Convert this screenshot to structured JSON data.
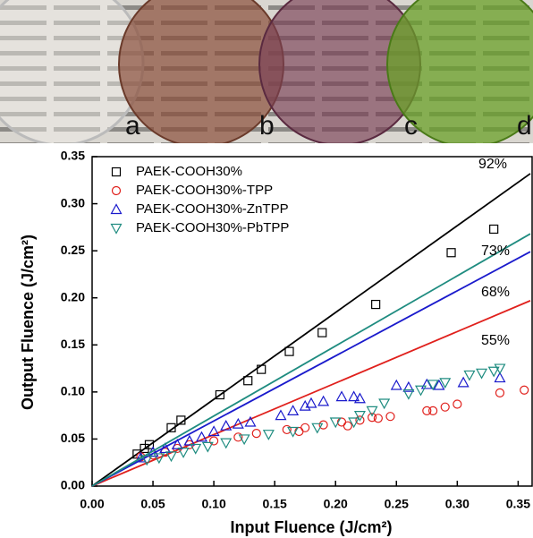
{
  "photo_labels": [
    "a",
    "b",
    "c",
    "d"
  ],
  "chart_data": {
    "type": "scatter",
    "xlabel": "Input Fluence (J/cm²)",
    "ylabel": "Output Fluence (J/cm²)",
    "xlim": [
      0,
      0.36
    ],
    "ylim": [
      0,
      0.35
    ],
    "xticks": [
      {
        "value": 0,
        "label": "0.00"
      },
      0.05,
      {
        "value": 0.1,
        "label": "0.10"
      },
      0.15,
      {
        "value": 0.2,
        "label": "0.20"
      },
      0.25,
      {
        "value": 0.3,
        "label": "0.30"
      },
      0.35
    ],
    "yticks": [
      {
        "value": 0,
        "label": "0.00"
      },
      0.05,
      {
        "value": 0.1,
        "label": "0.10"
      },
      0.15,
      {
        "value": 0.2,
        "label": "0.20"
      },
      0.25,
      {
        "value": 0.3,
        "label": "0.30"
      },
      0.35
    ],
    "legend": "upper left",
    "annotations": [
      "92%",
      "73%",
      "68%",
      "55%"
    ],
    "series": [
      {
        "name": "PAEK-COOH30%",
        "color": "#000000",
        "marker": "square",
        "x": [
          0.037,
          0.043,
          0.047,
          0.065,
          0.073,
          0.105,
          0.128,
          0.139,
          0.162,
          0.189,
          0.233,
          0.295,
          0.33
        ],
        "values": [
          0.034,
          0.04,
          0.044,
          0.062,
          0.07,
          0.097,
          0.112,
          0.124,
          0.143,
          0.163,
          0.193,
          0.248,
          0.273
        ],
        "fit_x": [
          0,
          0.36
        ],
        "fit_y": [
          0,
          0.332
        ]
      },
      {
        "name": "PAEK-COOH30%-TPP",
        "color": "#e0201c",
        "marker": "circle",
        "x": [
          0.04,
          0.05,
          0.06,
          0.07,
          0.08,
          0.1,
          0.12,
          0.135,
          0.16,
          0.17,
          0.175,
          0.19,
          0.205,
          0.21,
          0.22,
          0.23,
          0.235,
          0.245,
          0.275,
          0.28,
          0.29,
          0.3,
          0.335,
          0.355
        ],
        "values": [
          0.031,
          0.033,
          0.036,
          0.04,
          0.044,
          0.048,
          0.052,
          0.056,
          0.06,
          0.058,
          0.062,
          0.065,
          0.068,
          0.064,
          0.07,
          0.073,
          0.072,
          0.074,
          0.08,
          0.08,
          0.084,
          0.087,
          0.099,
          0.102
        ],
        "fit_x": [
          0,
          0.36
        ],
        "fit_y": [
          0,
          0.197
        ]
      },
      {
        "name": "PAEK-COOH30%-ZnTPP",
        "color": "#1a1acc",
        "marker": "triangle-up",
        "x": [
          0.04,
          0.05,
          0.06,
          0.07,
          0.08,
          0.09,
          0.1,
          0.11,
          0.12,
          0.13,
          0.155,
          0.165,
          0.175,
          0.18,
          0.19,
          0.205,
          0.215,
          0.22,
          0.25,
          0.26,
          0.275,
          0.285,
          0.305,
          0.335
        ],
        "values": [
          0.03,
          0.036,
          0.04,
          0.044,
          0.048,
          0.052,
          0.058,
          0.064,
          0.066,
          0.068,
          0.075,
          0.08,
          0.085,
          0.088,
          0.09,
          0.095,
          0.095,
          0.093,
          0.107,
          0.105,
          0.108,
          0.107,
          0.11,
          0.115
        ],
        "fit_x": [
          0,
          0.36
        ],
        "fit_y": [
          0,
          0.249
        ]
      },
      {
        "name": "PAEK-COOH30%-PbTPP",
        "color": "#1f8c80",
        "marker": "triangle-down",
        "x": [
          0.045,
          0.055,
          0.065,
          0.075,
          0.085,
          0.095,
          0.11,
          0.125,
          0.145,
          0.165,
          0.185,
          0.2,
          0.215,
          0.22,
          0.23,
          0.24,
          0.26,
          0.27,
          0.28,
          0.29,
          0.31,
          0.32,
          0.33,
          0.335
        ],
        "values": [
          0.028,
          0.03,
          0.032,
          0.036,
          0.04,
          0.042,
          0.046,
          0.05,
          0.055,
          0.058,
          0.062,
          0.068,
          0.068,
          0.075,
          0.08,
          0.088,
          0.098,
          0.102,
          0.108,
          0.11,
          0.118,
          0.12,
          0.122,
          0.125
        ],
        "fit_x": [
          0,
          0.36
        ],
        "fit_y": [
          0,
          0.268
        ]
      }
    ]
  }
}
